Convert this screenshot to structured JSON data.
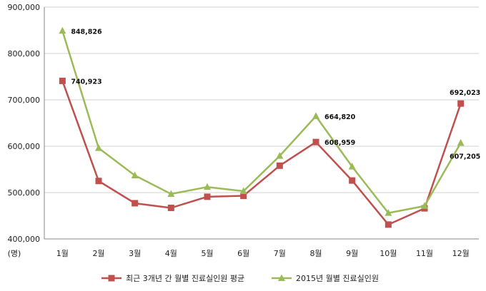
{
  "chart_data": {
    "type": "line",
    "y_unit_label": "(명)",
    "categories": [
      "1월",
      "2월",
      "3월",
      "4월",
      "5월",
      "6월",
      "7월",
      "8월",
      "9월",
      "10월",
      "11월",
      "12월"
    ],
    "ylim": [
      400000,
      900000
    ],
    "y_ticks": [
      "400,000",
      "500,000",
      "600,000",
      "700,000",
      "800,000",
      "900,000"
    ],
    "grid": "horizontal",
    "legend_position": "bottom",
    "series": [
      {
        "name": "최근 3개년 간 월별 진료실인원 평균",
        "color": "#c0504d",
        "marker": "square",
        "values": [
          740923,
          525000,
          477000,
          467000,
          491000,
          493000,
          558000,
          608959,
          526000,
          431000,
          466000,
          692023
        ],
        "labels": {
          "0": "740,923",
          "7": "608,959",
          "11": "692,023"
        }
      },
      {
        "name": "2015년 월별 진료실인원",
        "color": "#9bbb59",
        "marker": "triangle",
        "values": [
          848826,
          596000,
          537000,
          497000,
          512000,
          503000,
          579000,
          664820,
          556000,
          456000,
          471000,
          607205
        ],
        "labels": {
          "0": "848,826",
          "7": "664,820",
          "11": "607,205"
        }
      }
    ]
  }
}
